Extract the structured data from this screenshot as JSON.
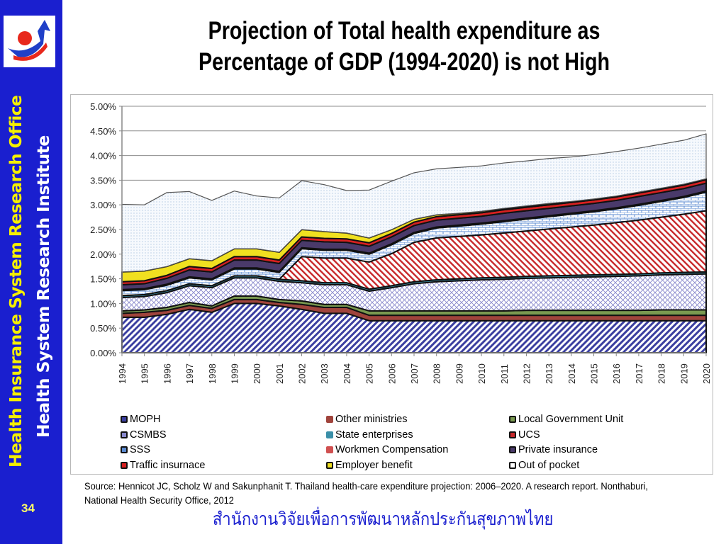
{
  "slide": {
    "title_line1": "Projection of Total health expenditure as",
    "title_line2": "Percentage of GDP (1994-2020) is not High",
    "sidebar_line1": "Health Insurance System Research Office",
    "sidebar_line2": "Health System Research Institute",
    "slide_number": "34",
    "logo_icon": "hisro-logo-icon",
    "source": "Source: Hennicot JC, Scholz W and Sakunphanit T. Thailand health-care expenditure projection: 2006–2020. A research report. Nonthaburi, National Health Security Office, 2012",
    "footer_thai": "สำนักงานวิจัยเพื่อการพัฒนาหลักประกันสุขภาพไทย",
    "colors": {
      "sidebar": "#1a1fcf",
      "sidebar_text1": "#f5f000",
      "sidebar_text2": "#ffffff",
      "footer_thai": "#1a1fcf"
    }
  },
  "chart_data": {
    "type": "area",
    "stacked": true,
    "title": "",
    "xlabel": "",
    "ylabel": "",
    "ylim": [
      0,
      5
    ],
    "y_ticks": [
      "0.00%",
      "0.50%",
      "1.00%",
      "1.50%",
      "2.00%",
      "2.50%",
      "3.00%",
      "3.50%",
      "4.00%",
      "4.50%",
      "5.00%"
    ],
    "grid": true,
    "legend_position": "bottom",
    "x": [
      "1994",
      "1995",
      "1996",
      "1997",
      "1998",
      "1999",
      "2000",
      "2001",
      "2002",
      "2003",
      "2004",
      "2005",
      "2006",
      "2007",
      "2008",
      "2009",
      "2010",
      "2011",
      "2012",
      "2013",
      "2014",
      "2015",
      "2016",
      "2017",
      "2018",
      "2019",
      "2020"
    ],
    "series": [
      {
        "name": "MOPH",
        "color": "#3b3fa0",
        "pattern": "diag-blue",
        "values": [
          0.72,
          0.72,
          0.78,
          0.88,
          0.82,
          1.0,
          1.0,
          0.95,
          0.88,
          0.8,
          0.8,
          0.65,
          0.65,
          0.65,
          0.65,
          0.65,
          0.65,
          0.65,
          0.65,
          0.65,
          0.65,
          0.65,
          0.65,
          0.65,
          0.65,
          0.65,
          0.65
        ]
      },
      {
        "name": "Other ministries",
        "color": "#a0443c",
        "pattern": "solid",
        "values": [
          0.08,
          0.1,
          0.08,
          0.08,
          0.08,
          0.08,
          0.08,
          0.07,
          0.1,
          0.12,
          0.12,
          0.11,
          0.11,
          0.11,
          0.11,
          0.11,
          0.11,
          0.11,
          0.11,
          0.11,
          0.11,
          0.11,
          0.11,
          0.11,
          0.11,
          0.11,
          0.11
        ]
      },
      {
        "name": "Local Government Unit",
        "color": "#7a9a50",
        "pattern": "solid",
        "values": [
          0.05,
          0.05,
          0.06,
          0.06,
          0.05,
          0.07,
          0.07,
          0.06,
          0.07,
          0.06,
          0.06,
          0.09,
          0.09,
          0.09,
          0.09,
          0.09,
          0.09,
          0.09,
          0.1,
          0.1,
          0.1,
          0.1,
          0.1,
          0.1,
          0.11,
          0.11,
          0.11
        ]
      },
      {
        "name": "CSMBS",
        "color": "#8888cc",
        "pattern": "crosshatch",
        "values": [
          0.27,
          0.27,
          0.3,
          0.34,
          0.37,
          0.37,
          0.37,
          0.37,
          0.37,
          0.4,
          0.4,
          0.4,
          0.47,
          0.55,
          0.59,
          0.61,
          0.63,
          0.64,
          0.65,
          0.66,
          0.67,
          0.68,
          0.69,
          0.7,
          0.71,
          0.72,
          0.73
        ]
      },
      {
        "name": "State enterprises",
        "color": "#3a8fa8",
        "pattern": "solid",
        "values": [
          0.04,
          0.04,
          0.04,
          0.04,
          0.04,
          0.04,
          0.04,
          0.04,
          0.04,
          0.04,
          0.04,
          0.04,
          0.04,
          0.04,
          0.04,
          0.04,
          0.04,
          0.04,
          0.04,
          0.04,
          0.04,
          0.04,
          0.04,
          0.04,
          0.04,
          0.04,
          0.04
        ]
      },
      {
        "name": "UCS",
        "color": "#c8282a",
        "pattern": "diag-red",
        "values": [
          0,
          0,
          0,
          0,
          0,
          0,
          0,
          0,
          0.49,
          0.5,
          0.5,
          0.55,
          0.65,
          0.8,
          0.85,
          0.86,
          0.87,
          0.9,
          0.92,
          0.95,
          0.98,
          1.01,
          1.05,
          1.09,
          1.13,
          1.18,
          1.24
        ]
      },
      {
        "name": "SSS",
        "color": "#5a8ad0",
        "pattern": "brick",
        "values": [
          0.1,
          0.1,
          0.11,
          0.12,
          0.12,
          0.14,
          0.14,
          0.14,
          0.16,
          0.16,
          0.16,
          0.16,
          0.18,
          0.18,
          0.2,
          0.21,
          0.22,
          0.23,
          0.24,
          0.25,
          0.26,
          0.27,
          0.28,
          0.3,
          0.32,
          0.34,
          0.38
        ]
      },
      {
        "name": "Workmen Compensation",
        "color": "#d05050",
        "pattern": "solid",
        "values": [
          0.02,
          0.02,
          0.02,
          0.02,
          0.02,
          0.02,
          0.02,
          0.02,
          0.02,
          0.02,
          0.02,
          0.02,
          0.02,
          0.02,
          0.02,
          0.02,
          0.02,
          0.02,
          0.02,
          0.02,
          0.02,
          0.02,
          0.02,
          0.02,
          0.02,
          0.02,
          0.02
        ]
      },
      {
        "name": "Private insurance",
        "color": "#4a3a6a",
        "pattern": "solid",
        "values": [
          0.1,
          0.1,
          0.12,
          0.14,
          0.14,
          0.16,
          0.16,
          0.16,
          0.15,
          0.15,
          0.14,
          0.14,
          0.14,
          0.14,
          0.14,
          0.14,
          0.14,
          0.15,
          0.15,
          0.15,
          0.15,
          0.15,
          0.15,
          0.16,
          0.16,
          0.16,
          0.16
        ]
      },
      {
        "name": "Traffic insurnace",
        "color": "#d82020",
        "pattern": "solid",
        "values": [
          0.06,
          0.06,
          0.06,
          0.07,
          0.07,
          0.07,
          0.07,
          0.07,
          0.07,
          0.07,
          0.07,
          0.07,
          0.07,
          0.07,
          0.07,
          0.07,
          0.07,
          0.07,
          0.07,
          0.07,
          0.07,
          0.07,
          0.07,
          0.07,
          0.07,
          0.07,
          0.07
        ]
      },
      {
        "name": "Employer benefit",
        "color": "#f0e020",
        "pattern": "solid",
        "values": [
          0.2,
          0.2,
          0.18,
          0.16,
          0.16,
          0.16,
          0.16,
          0.16,
          0.15,
          0.14,
          0.12,
          0.1,
          0.08,
          0.06,
          0.04,
          0.03,
          0.03,
          0.03,
          0.03,
          0.03,
          0.02,
          0.02,
          0.02,
          0.02,
          0.02,
          0.02,
          0.02
        ]
      },
      {
        "name": "Out of pocket",
        "color": "#dfeaf6",
        "pattern": "dots",
        "values": [
          1.37,
          1.34,
          1.5,
          1.36,
          1.22,
          1.17,
          1.07,
          1.1,
          0.99,
          0.95,
          0.86,
          0.97,
          0.98,
          0.94,
          0.93,
          0.93,
          0.92,
          0.92,
          0.91,
          0.91,
          0.9,
          0.9,
          0.9,
          0.89,
          0.89,
          0.89,
          0.91
        ]
      }
    ],
    "legend": [
      [
        "MOPH",
        "Other ministries",
        "Local Government Unit"
      ],
      [
        "CSMBS",
        "State enterprises",
        "UCS"
      ],
      [
        "SSS",
        "Workmen Compensation",
        "Private insurance"
      ],
      [
        "Traffic insurnace",
        "Employer benefit",
        "Out of pocket"
      ]
    ]
  }
}
